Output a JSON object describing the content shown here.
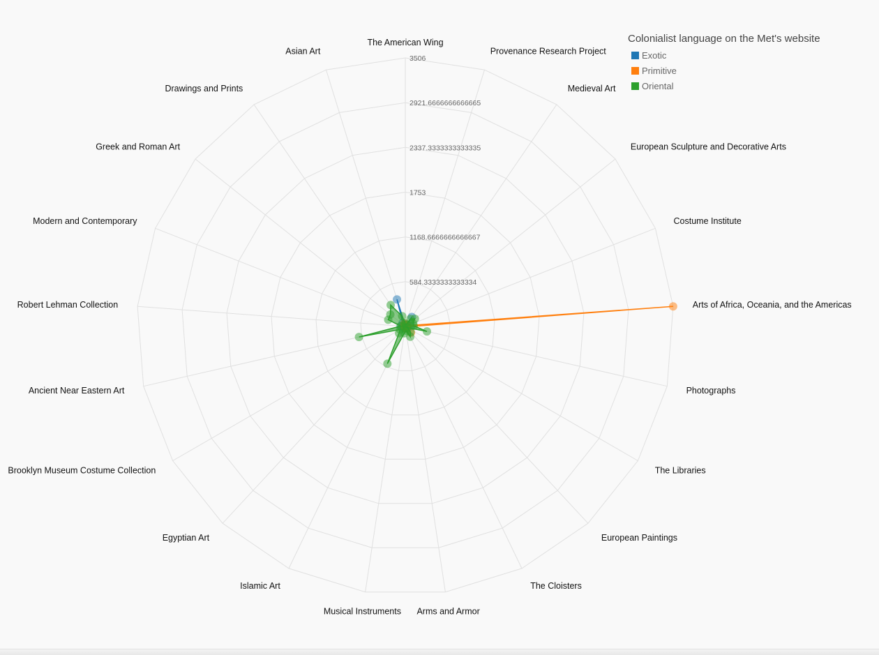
{
  "chart_data": {
    "type": "radar",
    "title": "Colonialist language on the Met's website",
    "axes": [
      "The American Wing",
      "Provenance Research Project",
      "Medieval Art",
      "European Sculpture and Decorative Arts",
      "Costume Institute",
      "Arts of Africa, Oceania, and the Americas",
      "Photographs",
      "The Libraries",
      "European Paintings",
      "The Cloisters",
      "Arms and Armor",
      "Musical Instruments",
      "Islamic Art",
      "Egyptian Art",
      "Brooklyn Museum Costume Collection",
      "Ancient Near Eastern Art",
      "Robert Lehman Collection",
      "Modern and Contemporary",
      "Greek and Roman Art",
      "Drawings and Prints",
      "Asian Art"
    ],
    "ticks": [
      "584.3333333333334",
      "1168.6666666666667",
      "1753",
      "2337.3333333333335",
      "2921.6666666666665",
      "3506"
    ],
    "rmax": 3506,
    "series": [
      {
        "name": "Exotic",
        "color": "#1f77b4",
        "values": [
          15,
          10,
          150,
          35,
          20,
          80,
          25,
          10,
          40,
          10,
          20,
          25,
          15,
          10,
          10,
          25,
          60,
          20,
          20,
          60,
          370
        ]
      },
      {
        "name": "Primitive",
        "color": "#ff7f0e",
        "values": [
          10,
          5,
          20,
          10,
          30,
          3506,
          20,
          10,
          110,
          30,
          20,
          10,
          5,
          10,
          5,
          10,
          10,
          10,
          10,
          20,
          40
        ]
      },
      {
        "name": "Oriental",
        "color": "#2ca02c",
        "values": [
          40,
          20,
          120,
          160,
          110,
          110,
          290,
          30,
          100,
          150,
          55,
          90,
          540,
          120,
          80,
          620,
          60,
          240,
          250,
          340,
          140
        ]
      }
    ]
  }
}
